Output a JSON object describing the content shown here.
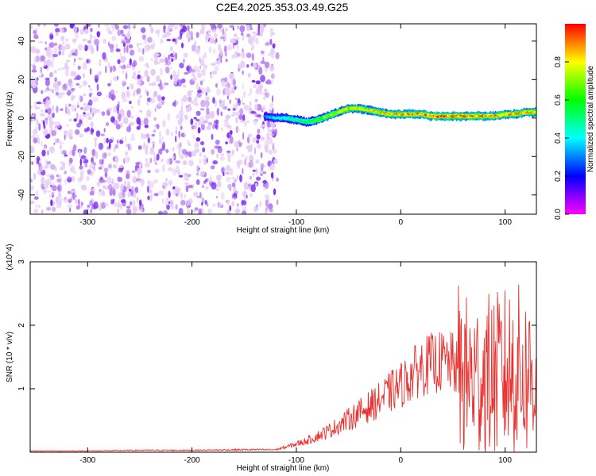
{
  "title": "C2E4.2025.353.03.49.G25",
  "chart_data": [
    {
      "type": "heatmap",
      "title": "C2E4.2025.353.03.49.G25",
      "xlabel": "Height of straight line (km)",
      "ylabel": "Frequency (Hz)",
      "xlim": [
        -355,
        130
      ],
      "ylim": [
        -50,
        49
      ],
      "x_ticks": [
        -300,
        -200,
        -100,
        0,
        100
      ],
      "y_ticks": [
        -40,
        -20,
        0,
        20,
        40
      ],
      "colorbar": {
        "label": "Normalized spectral amplitude",
        "range": [
          0.0,
          1.0
        ],
        "ticks": [
          "0.0",
          "0.2",
          "0.4",
          "0.6",
          "0.8"
        ],
        "colors": [
          "#ff00ff",
          "#0000ff",
          "#00ffff",
          "#00ff00",
          "#ffff00",
          "#ff0000"
        ]
      },
      "noise_region_x": [
        -355,
        -118
      ],
      "signal_track": {
        "x": [
          -130,
          -120,
          -110,
          -100,
          -90,
          -80,
          -70,
          -60,
          -50,
          -40,
          -30,
          -20,
          -10,
          0,
          10,
          20,
          30,
          40,
          50,
          60,
          70,
          80,
          90,
          100,
          110,
          120,
          130
        ],
        "freq": [
          1,
          0,
          0,
          -1,
          -2,
          -1,
          1,
          3,
          5,
          5,
          4,
          3,
          2,
          2,
          2,
          2,
          1,
          1,
          1,
          1,
          1,
          1,
          1,
          2,
          2,
          3,
          3
        ],
        "amplitude": [
          0.3,
          0.4,
          0.45,
          0.5,
          0.55,
          0.65,
          0.7,
          0.75,
          0.8,
          0.8,
          0.8,
          0.82,
          0.85,
          0.85,
          0.88,
          0.9,
          0.9,
          0.92,
          0.92,
          0.9,
          0.9,
          0.88,
          0.88,
          0.85,
          0.85,
          0.85,
          0.85
        ]
      }
    },
    {
      "type": "line",
      "xlabel": "Height of straight line (km)",
      "ylabel": "SNR (10 * v/v)",
      "y_multiplier": "(x10^4)",
      "xlim": [
        -355,
        130
      ],
      "ylim": [
        0,
        3
      ],
      "x_ticks": [
        -300,
        -200,
        -100,
        0,
        100
      ],
      "y_ticks": [
        1,
        2,
        3
      ],
      "series": [
        {
          "color": "#e8322f",
          "x": [
            -355,
            -300,
            -250,
            -200,
            -150,
            -120,
            -110,
            -100,
            -90,
            -80,
            -70,
            -60,
            -50,
            -40,
            -30,
            -20,
            -10,
            0,
            10,
            20,
            30,
            40,
            50,
            60,
            70,
            80,
            90,
            100,
            110,
            120,
            130
          ],
          "y": [
            0.02,
            0.02,
            0.03,
            0.03,
            0.04,
            0.04,
            0.08,
            0.13,
            0.18,
            0.25,
            0.33,
            0.42,
            0.52,
            0.62,
            0.72,
            0.82,
            0.95,
            1.05,
            1.2,
            1.35,
            1.4,
            1.42,
            1.4,
            1.2,
            1.15,
            1.2,
            1.2,
            1.25,
            1.3,
            1.2,
            1.2
          ]
        }
      ]
    }
  ]
}
